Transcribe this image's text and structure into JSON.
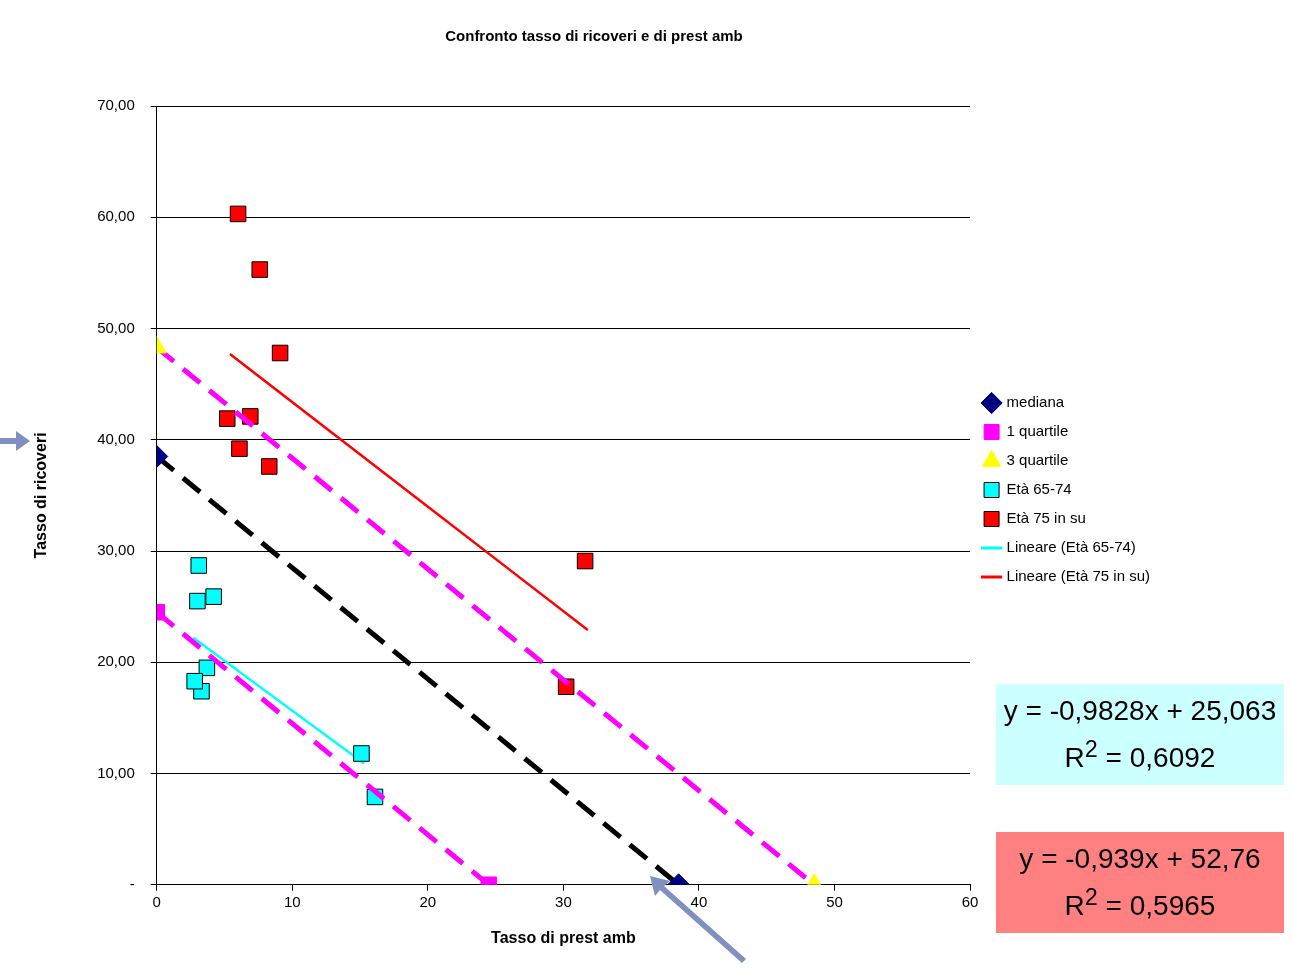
{
  "chart_data": {
    "type": "scatter",
    "title": "Confronto tasso di ricoveri e di prest amb",
    "xlabel": "Tasso di prest amb",
    "ylabel": "Tasso di ricoveri",
    "xlim": [
      0,
      60
    ],
    "xticks": [
      0,
      10,
      20,
      30,
      40,
      50,
      60
    ],
    "ylim": [
      0,
      70
    ],
    "yticks": [
      {
        "value": 0,
        "label": "-"
      },
      {
        "value": 10,
        "label": "10,00"
      },
      {
        "value": 20,
        "label": "20,00"
      },
      {
        "value": 30,
        "label": "30,00"
      },
      {
        "value": 40,
        "label": "40,00"
      },
      {
        "value": 50,
        "label": "50,00"
      },
      {
        "value": 60,
        "label": "60,00"
      },
      {
        "value": 70,
        "label": "70,00"
      }
    ],
    "grid": "y",
    "legend": "right",
    "series": [
      {
        "name": "mediana",
        "type": "line",
        "color": "#000000",
        "colors": [
          "#000080",
          "#000080"
        ],
        "marker": "diamond",
        "line_style": "dashed",
        "x": [
          0,
          38.5
        ],
        "values": [
          38.5,
          0
        ]
      },
      {
        "name": "1 quartile",
        "type": "line",
        "color": "#ff00ff",
        "colors": [
          "#ff00ff",
          "#ff00ff"
        ],
        "marker": "square",
        "line_style": "dashed",
        "x": [
          0,
          24.5
        ],
        "values": [
          24.5,
          0
        ]
      },
      {
        "name": "3 quartile",
        "type": "line",
        "color": "#ff00ff",
        "colors": [
          "#ffff00",
          "#ffff00"
        ],
        "marker": "triangle",
        "line_style": "dashed",
        "x": [
          0,
          48.5
        ],
        "values": [
          48.3,
          0
        ]
      },
      {
        "name": "Età 65-74",
        "type": "scatter",
        "color": "#00ffff",
        "marker": "square",
        "x": [
          3.1,
          3.0,
          4.2,
          3.7,
          3.3,
          2.8,
          15.1,
          16.1
        ],
        "values": [
          28.7,
          25.5,
          25.9,
          19.5,
          17.4,
          18.3,
          11.8,
          7.9
        ]
      },
      {
        "name": "Età 75 in su",
        "type": "scatter",
        "color": "#ff0000",
        "marker": "square",
        "x": [
          6.0,
          7.6,
          9.1,
          5.2,
          6.9,
          6.1,
          8.3,
          31.6,
          30.2
        ],
        "values": [
          60.3,
          55.3,
          47.8,
          41.9,
          42.1,
          39.2,
          37.6,
          29.1,
          17.8
        ]
      },
      {
        "name": "Lineare (Età 65-74)",
        "type": "line",
        "color": "#00ffff",
        "marker": "none",
        "line_style": "solid",
        "x": [
          2.7,
          15.3
        ],
        "values": [
          22.2,
          10.9
        ]
      },
      {
        "name": "Lineare (Età 75 in su)",
        "type": "line",
        "color": "#ff0000",
        "marker": "none",
        "line_style": "solid",
        "x": [
          5.4,
          31.8
        ],
        "values": [
          47.7,
          22.9
        ]
      }
    ],
    "annotations": [
      "y = -0,9828x + 25,063\nR$^{2}$ = 0,6092",
      "y = -0,939x + 52,76\nR$^{2}$ = 0,5965"
    ]
  }
}
